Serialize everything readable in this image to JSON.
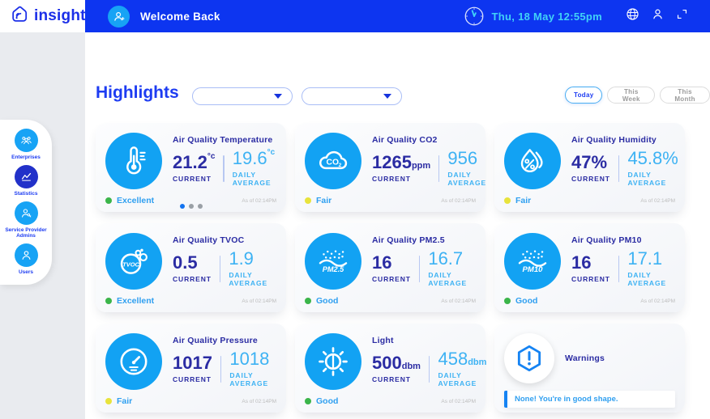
{
  "brand": {
    "name": "insight",
    "logo_icon": "insight-logo-icon"
  },
  "header": {
    "welcome": "Welcome Back",
    "datetime": "Thu, 18 May 12:55pm",
    "avatar_icon": "user-plus-icon",
    "clock_icon": "clock-icon",
    "globe_icon": "globe-icon",
    "user_icon": "user-icon",
    "fullscreen_icon": "fullscreen-icon"
  },
  "sidebar": {
    "items": [
      {
        "id": "enterprises",
        "label": "Enterprises",
        "icon": "enterprises-group-icon",
        "active": false
      },
      {
        "id": "statistics",
        "label": "Statistics",
        "icon": "statistics-chart-icon",
        "active": true
      },
      {
        "id": "service-provider-admins",
        "label": "Service Provider Admins",
        "icon": "admin-key-icon",
        "active": false
      },
      {
        "id": "users",
        "label": "Users",
        "icon": "users-person-icon",
        "active": false
      }
    ]
  },
  "highlights": {
    "title": "Highlights",
    "filters": [
      {
        "id": "filter-1",
        "value": ""
      },
      {
        "id": "filter-2",
        "value": ""
      }
    ],
    "range_buttons": [
      {
        "label": "Today",
        "active": true
      },
      {
        "label": "This Week",
        "active": false
      },
      {
        "label": "This Month",
        "active": false
      }
    ]
  },
  "cards": [
    {
      "title": "Air Quality Temperature",
      "icon": "thermometer-icon",
      "current": {
        "value": "21.2",
        "unit": "°c",
        "unit_pos": "sup"
      },
      "current_label": "CURRENT",
      "average": {
        "value": "19.6",
        "unit": "°c",
        "unit_pos": "sup"
      },
      "average_label": "DAILY AVERAGE",
      "status": {
        "label": "Excellent",
        "color": "#3bb54a"
      },
      "as_of": "As of 02:14PM",
      "carousel_dots": [
        "active",
        "inactive",
        "inactive"
      ]
    },
    {
      "title": "Air Quality CO2",
      "icon": "co2-cloud-icon",
      "current": {
        "value": "1265",
        "unit": "ppm",
        "unit_pos": "sub"
      },
      "current_label": "CURRENT",
      "average": {
        "value": "956",
        "unit": "",
        "unit_pos": "none"
      },
      "average_label": "DAILY AVERAGE",
      "status": {
        "label": "Fair",
        "color": "#e8e33c"
      },
      "as_of": "As of 02:14PM"
    },
    {
      "title": "Air Quality Humidity",
      "icon": "humidity-drop-icon",
      "current": {
        "value": "47%",
        "unit": "",
        "unit_pos": "none"
      },
      "current_label": "CURRENT",
      "average": {
        "value": "45.8%",
        "unit": "",
        "unit_pos": "none"
      },
      "average_label": "DAILY AVERAGE",
      "status": {
        "label": "Fair",
        "color": "#e8e33c"
      },
      "as_of": "As of 02:14PM"
    },
    {
      "title": "Air Quality TVOC",
      "icon": "tvoc-molecule-icon",
      "current": {
        "value": "0.5",
        "unit": "",
        "unit_pos": "none"
      },
      "current_label": "CURRENT",
      "average": {
        "value": "1.9",
        "unit": "",
        "unit_pos": "none"
      },
      "average_label": "DAILY AVERAGE",
      "status": {
        "label": "Excellent",
        "color": "#3bb54a"
      },
      "as_of": "As of 02:14PM"
    },
    {
      "title": "Air Quality PM2.5",
      "icon": "pm25-icon",
      "current": {
        "value": "16",
        "unit": "",
        "unit_pos": "none"
      },
      "current_label": "CURRENT",
      "average": {
        "value": "16.7",
        "unit": "",
        "unit_pos": "none"
      },
      "average_label": "DAILY AVERAGE",
      "status": {
        "label": "Good",
        "color": "#3bb54a"
      },
      "as_of": "As of 02:14PM"
    },
    {
      "title": "Air Quality PM10",
      "icon": "pm10-icon",
      "current": {
        "value": "16",
        "unit": "",
        "unit_pos": "none"
      },
      "current_label": "CURRENT",
      "average": {
        "value": "17.1",
        "unit": "",
        "unit_pos": "none"
      },
      "average_label": "DAILY AVERAGE",
      "status": {
        "label": "Good",
        "color": "#3bb54a"
      },
      "as_of": "As of 02:14PM"
    },
    {
      "title": "Air Quality Pressure",
      "icon": "gauge-icon",
      "current": {
        "value": "1017",
        "unit": "",
        "unit_pos": "none"
      },
      "current_label": "CURRENT",
      "average": {
        "value": "1018",
        "unit": "",
        "unit_pos": "none"
      },
      "average_label": "DAILY AVERAGE",
      "status": {
        "label": "Fair",
        "color": "#e8e33c"
      },
      "as_of": "As of 02:14PM"
    },
    {
      "title": "Light",
      "icon": "brightness-sun-icon",
      "current": {
        "value": "500",
        "unit": "dbm",
        "unit_pos": "sub"
      },
      "current_label": "CURRENT",
      "average": {
        "value": "458",
        "unit": "dbm",
        "unit_pos": "sub"
      },
      "average_label": "DAILY AVERAGE",
      "status": {
        "label": "Good",
        "color": "#3bb54a"
      },
      "as_of": "As of 02:14PM"
    }
  ],
  "warnings": {
    "title": "Warnings",
    "message": "None! You're in good shape.",
    "icon": "warning-hexagon-icon"
  },
  "colors": {
    "header_blue": "#0d35f0",
    "accent_blue": "#1d3cf2",
    "azure": "#12a2f3",
    "indigo_text": "#2b2ca3",
    "light_blue_text": "#3db2f3",
    "cyan_text": "#41d2f7",
    "status_green": "#3bb54a",
    "status_yellow": "#e8e33c",
    "muted_gray": "#bcbcbc",
    "rail_gray": "#e9ebef",
    "active_nav": "#2231c9"
  }
}
